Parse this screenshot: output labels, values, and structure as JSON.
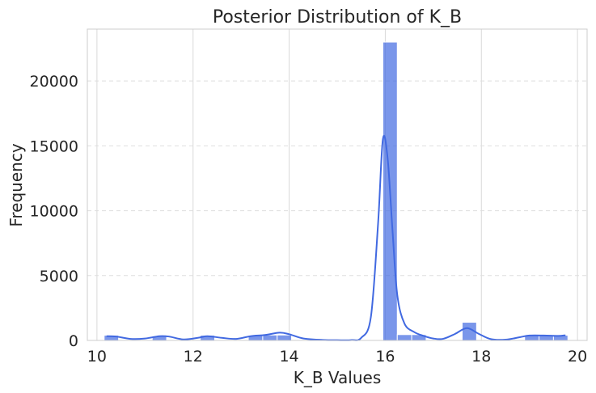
{
  "chart_data": {
    "type": "bar",
    "title": "Posterior Distribution of K_B",
    "xlabel": "K_B Values",
    "ylabel": "Frequency",
    "xlim": [
      9.8,
      20.2
    ],
    "ylim": [
      0,
      24000
    ],
    "xticks": [
      10,
      12,
      14,
      16,
      18,
      20
    ],
    "yticks": [
      0,
      5000,
      10000,
      15000,
      20000
    ],
    "grid": {
      "x": "solid",
      "y": "dashed"
    },
    "bar_color": "#4169E1",
    "kde_color": "#4169E1",
    "bins": [
      {
        "x0": 10.15,
        "x1": 10.45,
        "count": 400
      },
      {
        "x0": 11.15,
        "x1": 11.45,
        "count": 350
      },
      {
        "x0": 12.15,
        "x1": 12.45,
        "count": 400
      },
      {
        "x0": 13.15,
        "x1": 13.45,
        "count": 400
      },
      {
        "x0": 13.45,
        "x1": 13.75,
        "count": 420
      },
      {
        "x0": 13.75,
        "x1": 14.05,
        "count": 420
      },
      {
        "x0": 15.95,
        "x1": 16.25,
        "count": 23000
      },
      {
        "x0": 16.25,
        "x1": 16.55,
        "count": 450
      },
      {
        "x0": 16.55,
        "x1": 16.85,
        "count": 450
      },
      {
        "x0": 17.6,
        "x1": 17.9,
        "count": 1400
      },
      {
        "x0": 18.9,
        "x1": 19.2,
        "count": 400
      },
      {
        "x0": 19.2,
        "x1": 19.5,
        "count": 400
      },
      {
        "x0": 19.5,
        "x1": 19.8,
        "count": 400
      }
    ],
    "kde": [
      [
        10.2,
        330
      ],
      [
        10.4,
        300
      ],
      [
        10.7,
        120
      ],
      [
        11.0,
        150
      ],
      [
        11.3,
        330
      ],
      [
        11.5,
        300
      ],
      [
        11.8,
        80
      ],
      [
        12.1,
        200
      ],
      [
        12.3,
        330
      ],
      [
        12.6,
        200
      ],
      [
        12.9,
        120
      ],
      [
        13.2,
        330
      ],
      [
        13.5,
        420
      ],
      [
        13.8,
        600
      ],
      [
        14.0,
        480
      ],
      [
        14.3,
        150
      ],
      [
        14.7,
        40
      ],
      [
        15.0,
        20
      ],
      [
        15.3,
        30
      ],
      [
        15.5,
        200
      ],
      [
        15.7,
        1800
      ],
      [
        15.85,
        9000
      ],
      [
        15.95,
        15500
      ],
      [
        16.05,
        14000
      ],
      [
        16.15,
        8500
      ],
      [
        16.25,
        3500
      ],
      [
        16.4,
        1300
      ],
      [
        16.6,
        650
      ],
      [
        16.8,
        350
      ],
      [
        17.0,
        150
      ],
      [
        17.2,
        120
      ],
      [
        17.45,
        500
      ],
      [
        17.7,
        950
      ],
      [
        17.95,
        500
      ],
      [
        18.2,
        100
      ],
      [
        18.5,
        60
      ],
      [
        18.8,
        250
      ],
      [
        19.0,
        380
      ],
      [
        19.3,
        380
      ],
      [
        19.6,
        350
      ],
      [
        19.75,
        400
      ]
    ]
  }
}
